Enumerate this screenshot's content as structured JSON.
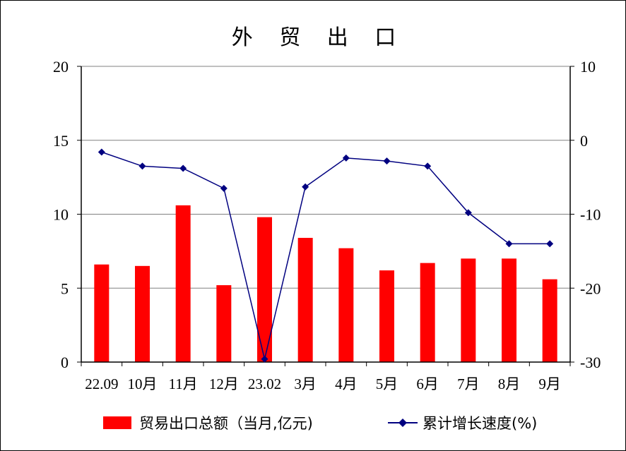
{
  "chart_data": {
    "type": "bar+line",
    "title": "外 贸 出 口",
    "categories": [
      "22.09",
      "10月",
      "11月",
      "12月",
      "23.02",
      "3月",
      "4月",
      "5月",
      "6月",
      "7月",
      "8月",
      "9月"
    ],
    "series": [
      {
        "name": "贸易出口总额（当月,亿元)",
        "type": "bar",
        "axis": "left",
        "color": "#ff0000",
        "values": [
          6.6,
          6.5,
          10.6,
          5.2,
          9.8,
          8.4,
          7.7,
          6.2,
          6.7,
          7.0,
          7.0,
          5.6
        ]
      },
      {
        "name": "累计增长速度(%)",
        "type": "line",
        "axis": "right",
        "color": "#000080",
        "marker": "diamond",
        "values": [
          -1.6,
          -3.5,
          -3.8,
          -6.5,
          -29.6,
          -6.3,
          -2.4,
          -2.8,
          -3.5,
          -9.8,
          -14.0,
          -14.0
        ]
      }
    ],
    "y_left": {
      "min": 0,
      "max": 20,
      "ticks": [
        0,
        5,
        10,
        15,
        20
      ]
    },
    "y_right": {
      "min": -30,
      "max": 10,
      "ticks": [
        -30,
        -20,
        -10,
        0,
        10
      ]
    },
    "grid": true,
    "legend": "bottom"
  }
}
